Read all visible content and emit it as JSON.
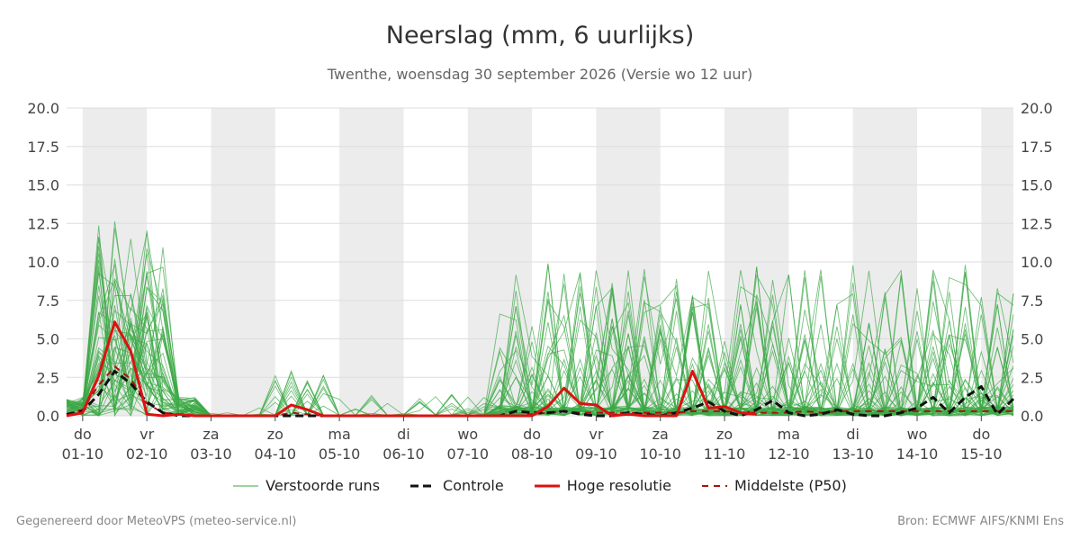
{
  "title": "Neerslag (mm, 6 uurlijks)",
  "subtitle": "Twenthe, woensdag 30 september 2026 (Versie wo 12 uur)",
  "footer": {
    "left": "Gegenereerd door MeteoVPS (meteo-service.nl)",
    "right": "Bron: ECMWF AIFS/KNMI Ens"
  },
  "colors": {
    "members": "#3aa845",
    "control": "#111111",
    "hires": "#dd1111",
    "p50": "#aa1111",
    "weekend_band": "#ececec",
    "grid": "#dddddd"
  },
  "chart_data": {
    "type": "line",
    "title": "Neerslag (mm, 6 uurlijks)",
    "ylim": [
      0,
      20
    ],
    "yticks": [
      "0.0",
      "2.5",
      "5.0",
      "7.5",
      "10.0",
      "12.5",
      "15.0",
      "17.5",
      "20.0"
    ],
    "xlim": [
      -0.25,
      14.5
    ],
    "x_unit": "days since 01-10",
    "x_ticks": [
      {
        "day": "do",
        "date": "01-10"
      },
      {
        "day": "vr",
        "date": "02-10"
      },
      {
        "day": "za",
        "date": "03-10"
      },
      {
        "day": "zo",
        "date": "04-10"
      },
      {
        "day": "ma",
        "date": "05-10"
      },
      {
        "day": "di",
        "date": "06-10"
      },
      {
        "day": "wo",
        "date": "07-10"
      },
      {
        "day": "do",
        "date": "08-10"
      },
      {
        "day": "vr",
        "date": "09-10"
      },
      {
        "day": "za",
        "date": "10-10"
      },
      {
        "day": "zo",
        "date": "11-10"
      },
      {
        "day": "ma",
        "date": "12-10"
      },
      {
        "day": "di",
        "date": "13-10"
      },
      {
        "day": "wo",
        "date": "14-10"
      },
      {
        "day": "do",
        "date": "15-10"
      }
    ],
    "shaded_bands": [
      [
        0,
        1
      ],
      [
        2,
        3
      ],
      [
        4,
        5
      ],
      [
        6,
        7
      ],
      [
        8,
        9
      ],
      [
        10,
        11
      ],
      [
        12,
        13
      ],
      [
        14,
        14.5
      ]
    ],
    "legend": [
      "Verstoorde runs",
      "Controle",
      "Hoge resolutie",
      "Middelste (P50)"
    ],
    "grid": true,
    "series": [
      {
        "name": "Controle",
        "style": "dashed",
        "x": [
          -0.25,
          0,
          0.25,
          0.5,
          0.75,
          1,
          1.25,
          1.5,
          1.75,
          2,
          3,
          4,
          5,
          6,
          6.5,
          6.75,
          7,
          7.25,
          7.5,
          7.75,
          8,
          8.25,
          8.5,
          8.75,
          9,
          9.25,
          9.5,
          9.75,
          10,
          10.25,
          10.5,
          10.75,
          11,
          11.25,
          11.5,
          11.75,
          12,
          12.25,
          12.5,
          12.75,
          13,
          13.25,
          13.5,
          13.75,
          14,
          14.25,
          14.5
        ],
        "y": [
          0.1,
          0.3,
          1.4,
          2.9,
          2.1,
          0.9,
          0.2,
          0.0,
          0.0,
          0.0,
          0.0,
          0.0,
          0.0,
          0.0,
          0.0,
          0.3,
          0.2,
          0.2,
          0.3,
          0.1,
          0.0,
          0.0,
          0.2,
          0.1,
          0.0,
          0.2,
          0.5,
          0.9,
          0.3,
          0.0,
          0.4,
          1.0,
          0.2,
          0.0,
          0.1,
          0.4,
          0.1,
          0.0,
          0.0,
          0.2,
          0.5,
          1.2,
          0.2,
          1.2,
          1.9,
          0.1,
          1.1
        ]
      },
      {
        "name": "Hoge resolutie",
        "style": "solid",
        "x": [
          -0.25,
          0,
          0.25,
          0.5,
          0.75,
          1,
          1.25,
          1.5,
          1.75,
          2,
          2.5,
          3,
          3.25,
          3.5,
          3.75,
          4,
          5,
          6,
          6.5,
          6.75,
          7,
          7.25,
          7.5,
          7.75,
          8,
          8.25,
          8.5,
          8.75,
          9,
          9.25,
          9.5,
          9.75,
          10,
          10.25,
          10.5
        ],
        "y": [
          0.0,
          0.2,
          2.6,
          6.1,
          4.2,
          0.1,
          0.0,
          0.1,
          0.0,
          0.0,
          0.0,
          0.0,
          0.7,
          0.4,
          0.0,
          0.0,
          0.0,
          0.0,
          0.0,
          0.0,
          0.0,
          0.6,
          1.8,
          0.8,
          0.7,
          0.0,
          0.1,
          0.0,
          0.0,
          0.0,
          2.9,
          0.5,
          0.6,
          0.2,
          0.1
        ]
      },
      {
        "name": "Middelste (P50)",
        "style": "dashed",
        "x": [
          -0.25,
          0,
          0.25,
          0.5,
          0.75,
          1,
          1.25,
          1.5,
          1.75,
          2,
          2.5,
          3,
          3.25,
          3.5,
          3.75,
          4,
          5,
          6,
          6.5,
          6.75,
          7,
          7.25,
          7.5,
          7.75,
          8,
          8.25,
          8.5,
          8.75,
          9,
          9.25,
          9.5,
          9.75,
          10,
          10.25,
          10.5,
          10.75,
          11,
          11.25,
          11.5,
          11.75,
          12,
          12.5,
          13,
          13.5,
          14,
          14.5
        ],
        "y": [
          0.1,
          0.4,
          2.0,
          3.2,
          2.4,
          0.8,
          0.2,
          0.1,
          0.0,
          0.0,
          0.0,
          0.0,
          0.2,
          0.1,
          0.0,
          0.0,
          0.0,
          0.0,
          0.0,
          0.0,
          0.1,
          0.2,
          0.3,
          0.2,
          0.2,
          0.2,
          0.2,
          0.2,
          0.2,
          0.2,
          0.3,
          0.3,
          0.3,
          0.2,
          0.2,
          0.2,
          0.2,
          0.3,
          0.2,
          0.3,
          0.3,
          0.3,
          0.3,
          0.3,
          0.3,
          0.3
        ]
      }
    ]
  }
}
